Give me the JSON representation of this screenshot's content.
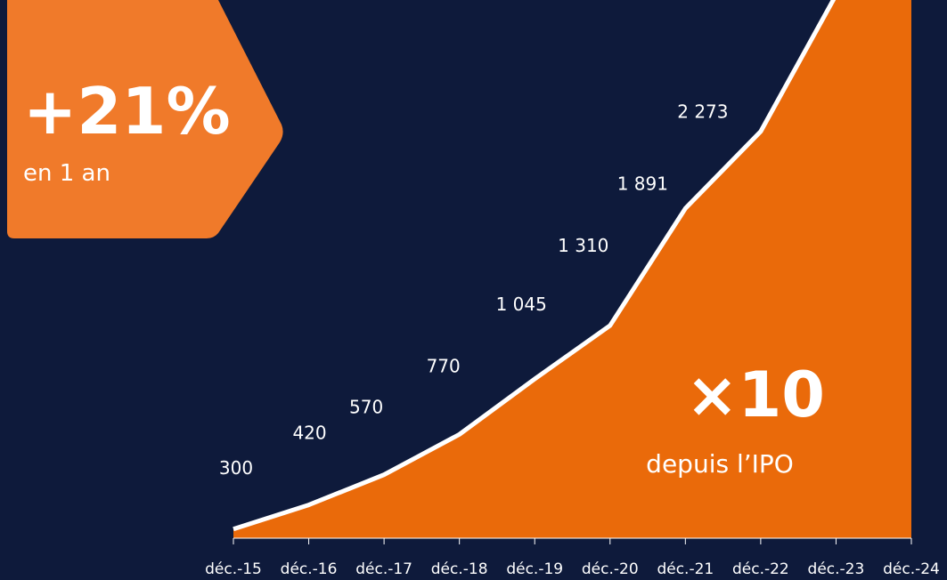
{
  "chart_data": {
    "type": "area",
    "categories": [
      "déc.-15",
      "déc.-16",
      "déc.-17",
      "déc.-18",
      "déc.-19",
      "déc.-20",
      "déc.-21",
      "déc.-22",
      "déc.-23",
      "déc.-24"
    ],
    "values": [
      300,
      420,
      570,
      770,
      1045,
      1310,
      1891,
      2273,
      2950,
      3570
    ],
    "value_labels": [
      "300",
      "420",
      "570",
      "770",
      "1 045",
      "1 310",
      "1 891",
      "2 273",
      null,
      null
    ],
    "color": "#ea6a0a",
    "ylim": [
      255,
      2925
    ],
    "badge": {
      "value": "+21%",
      "text": "en 1 an"
    },
    "annotation": {
      "value": "×10",
      "text": "depuis l’IPO"
    }
  }
}
